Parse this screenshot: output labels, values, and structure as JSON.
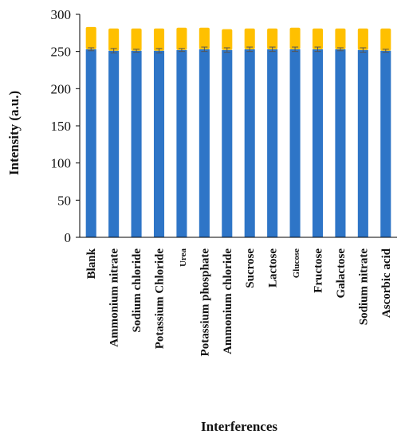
{
  "chart_data": {
    "type": "bar",
    "stacked": true,
    "xlabel": "Interferences",
    "ylabel": "Intensity (a.u.)",
    "ylim": [
      0,
      300
    ],
    "yticks": [
      0,
      50,
      100,
      150,
      200,
      250,
      300
    ],
    "grid": false,
    "categories": [
      "Blank",
      "Ammonium nitrate",
      "Sodium chloride",
      "Potassium Chloride",
      "Urea",
      "Potassium phosphate",
      "Ammonium chloride",
      "Sucrose",
      "Lactose",
      "Glucose",
      "Fructose",
      "Galactose",
      "Sodium nitrate",
      "Ascorbic acid"
    ],
    "small_label_categories": [
      "Urea",
      "Glucose"
    ],
    "series": [
      {
        "color": "#2e75c7",
        "values": [
          253,
          251,
          251,
          251,
          252,
          253,
          252,
          253,
          253,
          253,
          253,
          253,
          252,
          251
        ],
        "errors": [
          2,
          3,
          2,
          3,
          2,
          3,
          3,
          3,
          3,
          3,
          3,
          2,
          3,
          2
        ]
      },
      {
        "color": "#ffc000",
        "values": [
          30,
          30,
          30,
          30,
          30,
          29,
          28,
          28,
          28,
          29,
          28,
          28,
          29,
          30
        ],
        "errors": [
          3,
          3,
          3,
          3,
          3,
          3,
          3,
          3,
          3,
          3,
          3,
          3,
          3,
          3
        ]
      }
    ]
  }
}
